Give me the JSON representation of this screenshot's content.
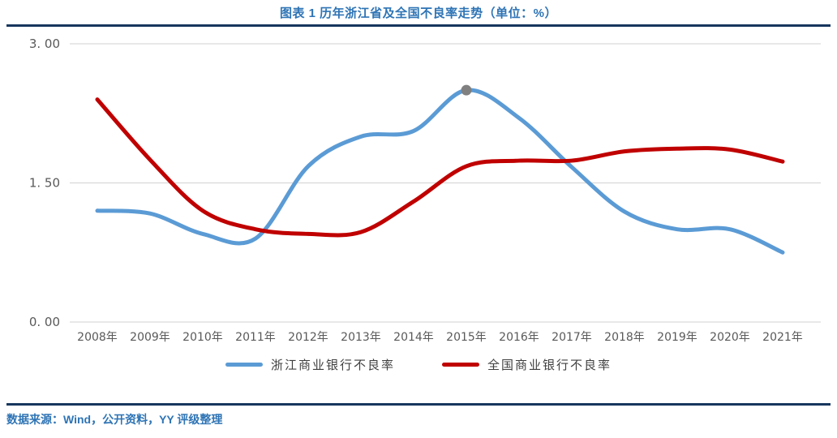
{
  "header": {
    "title": "图表 1 历年浙江省及全国不良率走势（单位：%）"
  },
  "footer": {
    "source": "数据来源：Wind，公开资料，YY 评级整理"
  },
  "colors": {
    "accent_blue": "#2E74B5",
    "divider_navy": "#17365D",
    "series_blue": "#5B9BD5",
    "series_red": "#C00000",
    "marker_gray": "#808080",
    "axis_text_gray": "#595959",
    "gridline_gray": "#D9D9D9"
  },
  "chart_data": {
    "type": "line",
    "title": "图表 1 历年浙江省及全国不良率走势（单位：%）",
    "xlabel": "",
    "ylabel": "",
    "unit": "%",
    "categories": [
      "2008年",
      "2009年",
      "2010年",
      "2011年",
      "2012年",
      "2013年",
      "2014年",
      "2015年",
      "2016年",
      "2017年",
      "2018年",
      "2019年",
      "2020年",
      "2021年"
    ],
    "series": [
      {
        "name": "浙江商业银行不良率",
        "color": "#5B9BD5",
        "values": [
          1.2,
          1.17,
          0.95,
          0.9,
          1.68,
          2.0,
          2.06,
          2.5,
          2.2,
          1.67,
          1.19,
          1.0,
          1.0,
          0.75
        ],
        "marker": {
          "category": "2015年",
          "index": 7,
          "value": 2.5,
          "color": "#808080"
        }
      },
      {
        "name": "全国商业银行不良率",
        "color": "#C00000",
        "values": [
          2.4,
          1.75,
          1.2,
          1.0,
          0.95,
          0.97,
          1.3,
          1.68,
          1.74,
          1.74,
          1.84,
          1.87,
          1.86,
          1.73
        ]
      }
    ],
    "ylim": [
      0,
      3
    ],
    "yticks": [
      3.0,
      1.5,
      0.0
    ],
    "ytick_labels": [
      "3. 00",
      "1. 50",
      "0. 00"
    ],
    "grid": true,
    "smooth": true,
    "legend_position": "bottom"
  }
}
